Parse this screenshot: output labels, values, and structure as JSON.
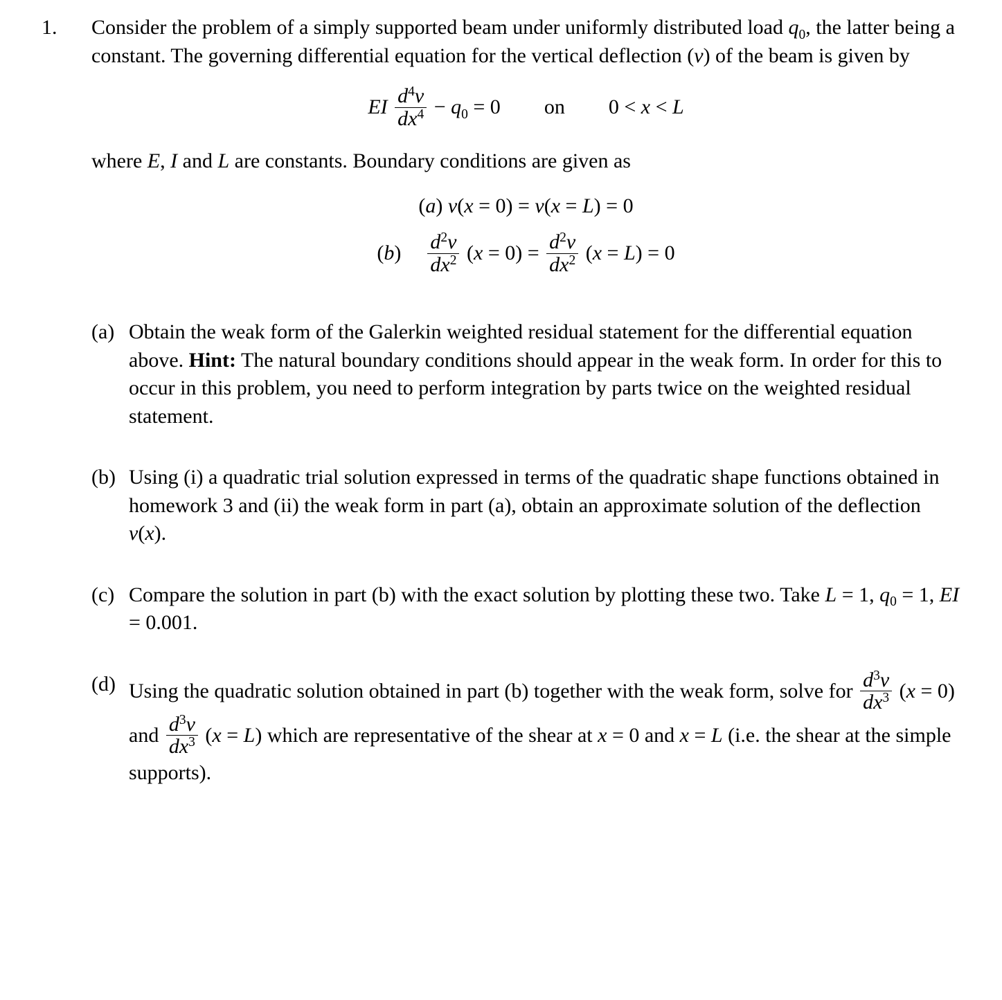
{
  "problem": {
    "number": "1.",
    "intro_html": "Consider the problem of a simply supported beam under uniformly distributed load <span class='math'>q</span><span class='sub'>0</span>, the latter being a constant. The governing differential equation for the vertical deflection (<span class='math'>v</span>) of the beam is given by",
    "gov_eq": {
      "left": {
        "coeff": "EI",
        "num": "d<span class='sup'>4</span>v",
        "den": "dx<span class='sup'>4</span>"
      },
      "rhs": "− <span class='math'>q</span><span class='sub'>0</span> = 0",
      "domain_label": "on",
      "domain": "0 &lt; <span class='math'>x</span> &lt; <span class='math'>L</span>"
    },
    "constants_line": "where <span class='math'>E</span>, <span class='math'>I</span> and <span class='math'>L</span> are constants. Boundary conditions are given as",
    "bc_a": "(<span class='math'>a</span>) <span class='math'>v</span>(<span class='math'>x</span> = 0) = <span class='math'>v</span>(<span class='math'>x</span> = <span class='math'>L</span>) = 0",
    "bc_b": {
      "label": "(<span class='math'>b</span>)",
      "frac_num": "d<span class='sup'>2</span>v",
      "frac_den": "dx<span class='sup'>2</span>",
      "lhs_tail": "(<span class='math'>x</span> = 0) =",
      "rhs_tail": "(<span class='math'>x</span> = <span class='math'>L</span>) = 0"
    },
    "subparts": [
      {
        "label": "(a)",
        "body_html": "Obtain the weak form of the Galerkin weighted residual statement for the differential equation above. <span class='bold'>Hint:</span> The natural boundary conditions should appear in the weak form. In order for this to occur in this problem, you need to perform integration by parts twice on the weighted residual statement."
      },
      {
        "label": "(b)",
        "body_html": "Using (i) a quadratic trial solution expressed in terms of the quadratic shape functions obtained in homework 3 and (ii) the weak form in part (a), obtain an approximate solution of the deflection <span class='math'>v</span>(<span class='math'>x</span>)."
      },
      {
        "label": "(c)",
        "body_html": "Compare the solution in part (b) with the exact solution by plotting these two. Take <span class='math'>L</span> = 1, <span class='math'>q</span><span class='sub'>0</span> = 1, <span class='math'>EI</span> = 0.001."
      },
      {
        "label": "(d)",
        "body_html": "Using the quadratic solution obtained in part (b) together with the weak form, solve for <span class='frac'><span class='num'><span class='math'>d</span><span class='sup'>3</span><span class='math'>v</span></span><span class='den'><span class='math'>dx</span><span class='sup'>3</span></span></span> (<span class='math'>x</span> = 0) and <span class='frac'><span class='num'><span class='math'>d</span><span class='sup'>3</span><span class='math'>v</span></span><span class='den'><span class='math'>dx</span><span class='sup'>3</span></span></span> (<span class='math'>x</span> = <span class='math'>L</span>) which are representative of the shear at <span class='math'>x</span> = 0 and <span class='math'>x</span> = <span class='math'>L</span> (i.e. the shear at the simple supports)."
      }
    ]
  }
}
